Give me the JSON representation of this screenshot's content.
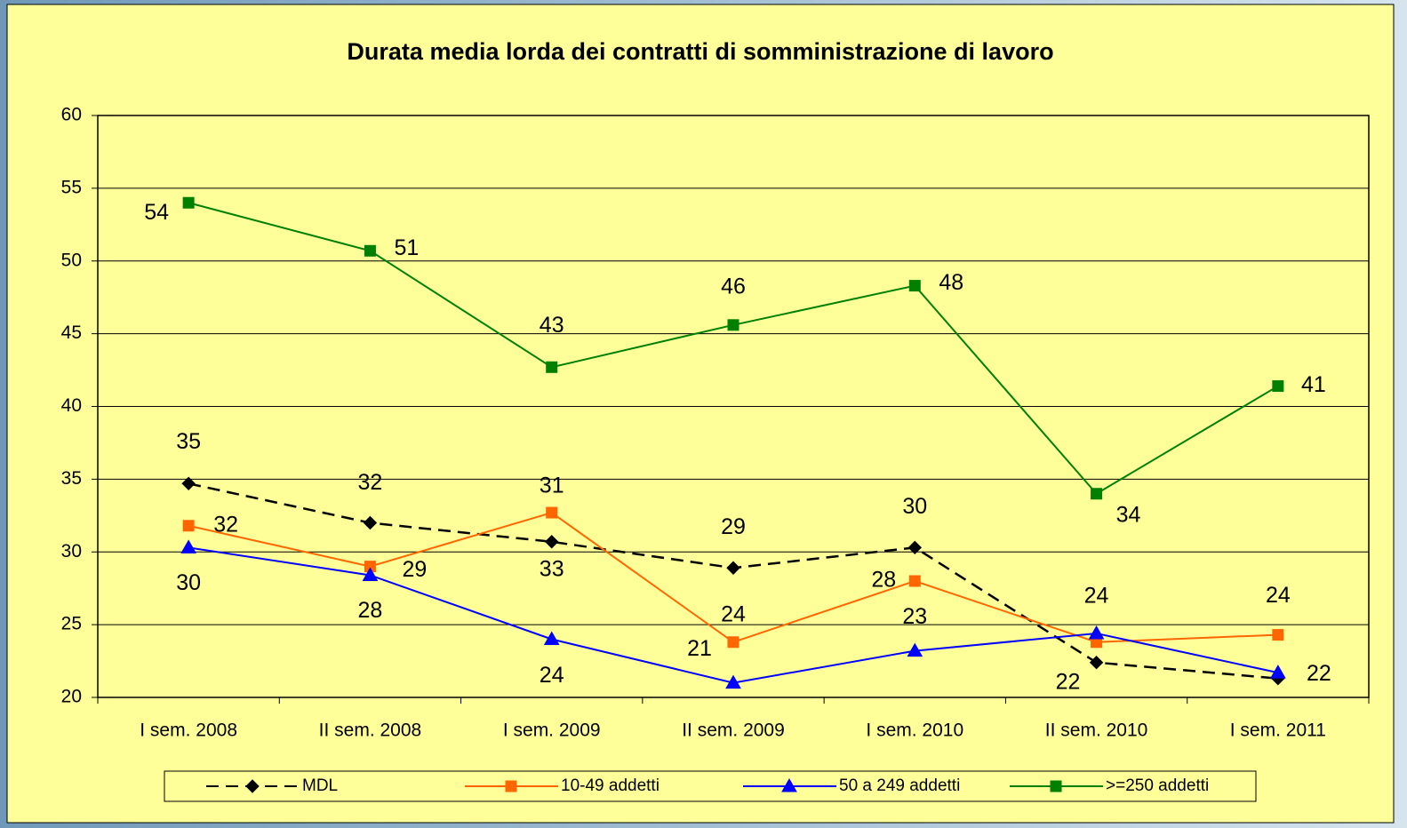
{
  "chart_data": {
    "type": "line",
    "title": "Durata media lorda dei contratti di somministrazione di lavoro",
    "categories": [
      "I sem. 2008",
      "II sem. 2008",
      "I sem. 2009",
      "II sem. 2009",
      "I sem. 2010",
      "II sem. 2010",
      "I sem. 2011"
    ],
    "series": [
      {
        "name": "MDL",
        "color": "#000000",
        "marker": "diamond",
        "dashed": true,
        "values": [
          34.7,
          32.0,
          30.7,
          28.9,
          30.3,
          22.4,
          21.3
        ],
        "value_labels": [
          "35",
          "32",
          "31",
          "29",
          "30",
          "22",
          null
        ]
      },
      {
        "name": "10-49 addetti",
        "color": "#ff6600",
        "marker": "square",
        "values": [
          31.8,
          29.0,
          32.7,
          23.8,
          28.0,
          23.8,
          24.3
        ],
        "value_labels": [
          "32",
          "29",
          "33",
          "24",
          "28",
          null,
          "24"
        ]
      },
      {
        "name": "50 a 249 addetti",
        "color": "#0000ff",
        "marker": "triangle",
        "values": [
          30.3,
          28.4,
          24.0,
          21.0,
          23.2,
          24.4,
          21.7
        ],
        "value_labels": [
          "30",
          "28",
          "24",
          "21",
          "23",
          "24",
          "22"
        ]
      },
      {
        "name": ">=250 addetti",
        "color": "#008000",
        "marker": "square",
        "values": [
          54.0,
          50.7,
          42.7,
          45.6,
          48.3,
          34.0,
          41.4
        ],
        "value_labels": [
          "54",
          "51",
          "43",
          "46",
          "48",
          "34",
          "41"
        ]
      }
    ],
    "ylim": [
      20,
      60
    ],
    "yticks": [
      20,
      25,
      30,
      35,
      40,
      45,
      50,
      55,
      60
    ],
    "grid": true,
    "legend": "bottom"
  }
}
